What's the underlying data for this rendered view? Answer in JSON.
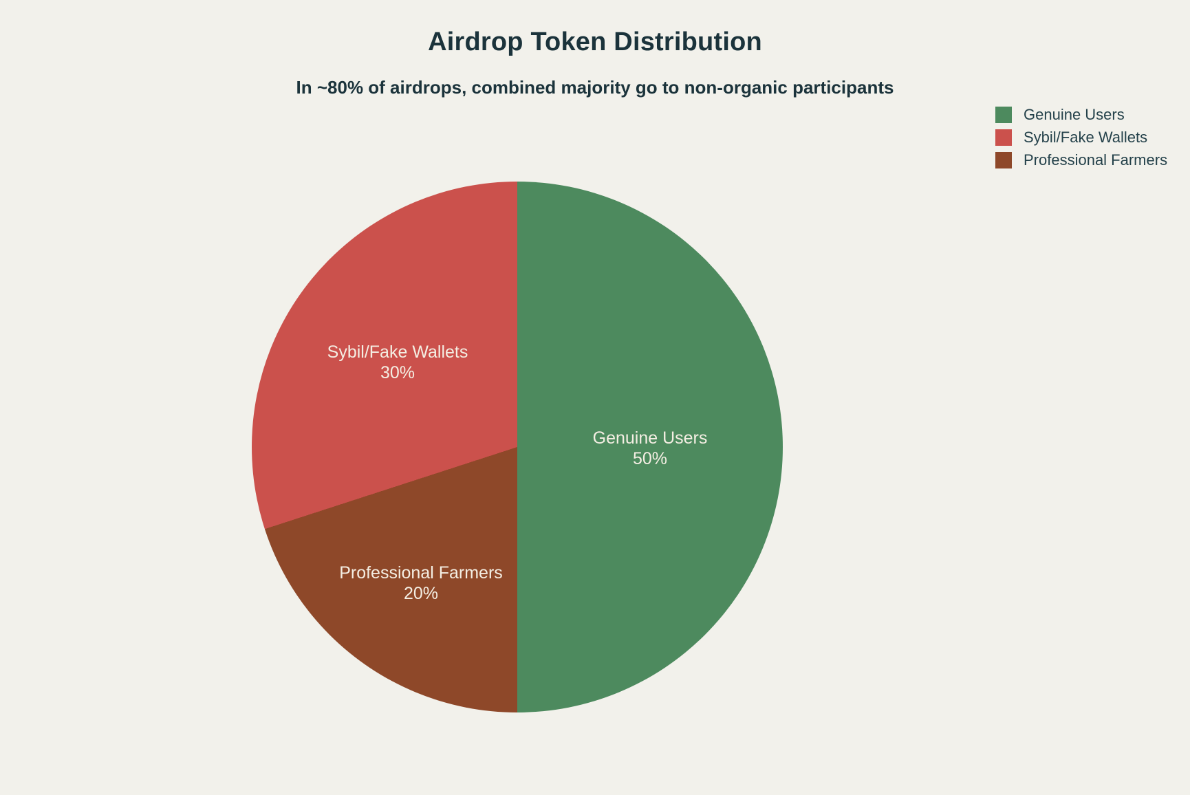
{
  "page": {
    "background_color": "#f2f1eb",
    "text_color": "#1b333b"
  },
  "header": {
    "title": "Airdrop Token Distribution",
    "subtitle": "In ~80% of airdrops, combined majority go to non-organic participants"
  },
  "chart_data": {
    "type": "pie",
    "title": "Airdrop Token Distribution",
    "subtitle": "In ~80% of airdrops, combined majority go to non-organic participants",
    "categories": [
      "Genuine Users",
      "Sybil/Fake Wallets",
      "Professional Farmers"
    ],
    "values": [
      50,
      30,
      20
    ],
    "colors": [
      "#4d8a5e",
      "#cb514c",
      "#8e4829"
    ],
    "slices": [
      {
        "label": "Genuine Users",
        "value": 50,
        "pct_text": "50%",
        "color": "#4d8a5e"
      },
      {
        "label": "Sybil/Fake Wallets",
        "value": 30,
        "pct_text": "30%",
        "color": "#cb514c"
      },
      {
        "label": "Professional Farmers",
        "value": 20,
        "pct_text": "20%",
        "color": "#8e4829"
      }
    ],
    "layout": {
      "start_angle": "top",
      "direction": "clockwise",
      "clockwise_from_top_order": [
        0,
        2,
        1
      ],
      "legend_position": "top-right",
      "slice_label_color": "#f4eee3",
      "grid": false
    }
  }
}
